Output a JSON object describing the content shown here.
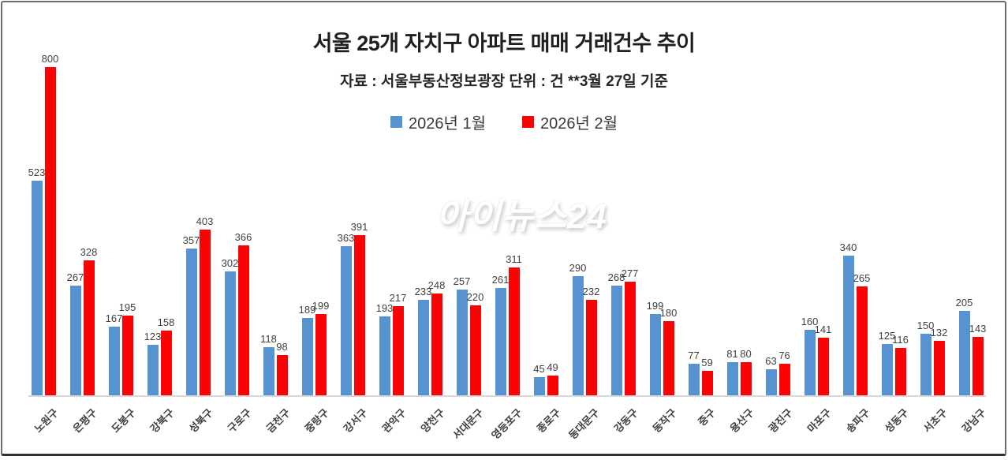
{
  "page": {
    "watermark": "아이뉴스24"
  },
  "chart_data": {
    "type": "bar",
    "title": "서울 25개 자치구 아파트 매매 거래건수 추이",
    "subtitle": "자료 : 서울부동산정보광장  단위 : 건  **3월 27일 기준",
    "categories": [
      "노원구",
      "은평구",
      "도봉구",
      "강북구",
      "성북구",
      "구로구",
      "금천구",
      "중랑구",
      "강서구",
      "관악구",
      "양천구",
      "서대문구",
      "영등포구",
      "종로구",
      "동대문구",
      "강동구",
      "동작구",
      "중구",
      "용산구",
      "광진구",
      "마포구",
      "송파구",
      "성동구",
      "서초구",
      "강남구"
    ],
    "series": [
      {
        "name": "2026년 1월",
        "color": "#5793D1",
        "values": [
          523,
          267,
          167,
          123,
          357,
          302,
          118,
          189,
          363,
          193,
          233,
          257,
          261,
          45,
          290,
          268,
          199,
          77,
          81,
          63,
          160,
          340,
          125,
          150,
          205
        ]
      },
      {
        "name": "2026년 2월",
        "color": "#FB0204",
        "values": [
          800,
          328,
          195,
          158,
          403,
          366,
          98,
          199,
          391,
          217,
          248,
          220,
          311,
          49,
          232,
          277,
          180,
          59,
          80,
          76,
          141,
          265,
          116,
          132,
          143
        ]
      }
    ],
    "xlabel": "",
    "ylabel": "",
    "ylim": [
      0,
      800
    ],
    "grid": false,
    "legend_position": "top-center",
    "value_labels": "outside-end",
    "value_label_color": "#3f3f3f",
    "axis_line_color": "#d8d8d8"
  }
}
